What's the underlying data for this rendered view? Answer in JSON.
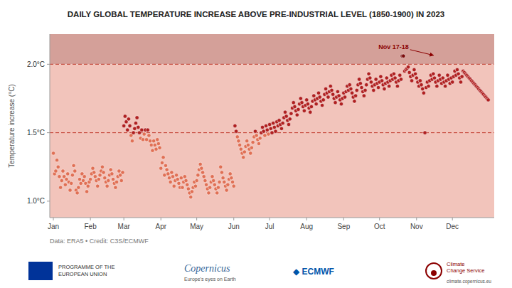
{
  "chart_data": {
    "type": "scatter",
    "title": "DAILY GLOBAL TEMPERATURE INCREASE ABOVE PRE-INDUSTRIAL LEVEL (1850-1900) IN 2023",
    "y_label": "Temperature increase (°C)",
    "credit": "Data: ERA5 • Credit: C3S/ECMWF",
    "footer": [
      "PROGRAMME OF THE\nEUROPEAN UNION",
      "Copernicus",
      "Europe's eyes on Earth",
      "◆ ECMWF",
      "Climate\nChange Service",
      "climate.copernicus.eu"
    ],
    "xlim": [
      -2,
      370
    ],
    "xticks": [
      {
        "value": 1,
        "label": "Jan"
      },
      {
        "value": 32,
        "label": "Feb"
      },
      {
        "value": 60,
        "label": "Mar"
      },
      {
        "value": 91,
        "label": "Apr"
      },
      {
        "value": 121,
        "label": "May"
      },
      {
        "value": 152,
        "label": "Jun"
      },
      {
        "value": 182,
        "label": "Jul"
      },
      {
        "value": 213,
        "label": "Aug"
      },
      {
        "value": 244,
        "label": "Sep"
      },
      {
        "value": 274,
        "label": "Oct"
      },
      {
        "value": 305,
        "label": "Nov"
      },
      {
        "value": 335,
        "label": "Dec"
      }
    ],
    "ylim": [
      0.88,
      2.22
    ],
    "yticks": [
      {
        "value": 1.0,
        "label": "1.0°C"
      },
      {
        "value": 1.5,
        "label": "1.5°C"
      },
      {
        "value": 2.0,
        "label": "2.0°C"
      }
    ],
    "grid": false,
    "reference_lines": [
      1.5,
      2.0
    ],
    "bands": [
      {
        "from": 2.0,
        "to": 2.22,
        "color": "#d4a099"
      },
      {
        "from": 0.88,
        "to": 2.0,
        "color": "#f2c4bb"
      }
    ],
    "annotations": [
      {
        "text": "Nov 17-18",
        "x": 321,
        "y": 2.06
      }
    ],
    "x": [
      1,
      2,
      3,
      4,
      5,
      6,
      7,
      8,
      9,
      10,
      11,
      12,
      13,
      14,
      15,
      16,
      17,
      18,
      19,
      20,
      21,
      22,
      23,
      24,
      25,
      26,
      27,
      28,
      29,
      30,
      31,
      32,
      33,
      34,
      35,
      36,
      37,
      38,
      39,
      40,
      41,
      42,
      43,
      44,
      45,
      46,
      47,
      48,
      49,
      50,
      51,
      52,
      53,
      54,
      55,
      56,
      57,
      58,
      59,
      60,
      61,
      62,
      63,
      64,
      65,
      66,
      67,
      68,
      69,
      70,
      71,
      72,
      73,
      74,
      75,
      76,
      77,
      78,
      79,
      80,
      81,
      82,
      83,
      84,
      85,
      86,
      87,
      88,
      89,
      90,
      91,
      92,
      93,
      94,
      95,
      96,
      97,
      98,
      99,
      100,
      101,
      102,
      103,
      104,
      105,
      106,
      107,
      108,
      109,
      110,
      111,
      112,
      113,
      114,
      115,
      116,
      117,
      118,
      119,
      120,
      121,
      122,
      123,
      124,
      125,
      126,
      127,
      128,
      129,
      130,
      131,
      132,
      133,
      134,
      135,
      136,
      137,
      138,
      139,
      140,
      141,
      142,
      143,
      144,
      145,
      146,
      147,
      148,
      149,
      150,
      151,
      152,
      153,
      154,
      155,
      156,
      157,
      158,
      159,
      160,
      161,
      162,
      163,
      164,
      165,
      166,
      167,
      168,
      169,
      170,
      171,
      172,
      173,
      174,
      175,
      176,
      177,
      178,
      179,
      180,
      181,
      182,
      183,
      184,
      185,
      186,
      187,
      188,
      189,
      190,
      191,
      192,
      193,
      194,
      195,
      196,
      197,
      198,
      199,
      200,
      201,
      202,
      203,
      204,
      205,
      206,
      207,
      208,
      209,
      210,
      211,
      212,
      213,
      214,
      215,
      216,
      217,
      218,
      219,
      220,
      221,
      222,
      223,
      224,
      225,
      226,
      227,
      228,
      229,
      230,
      231,
      232,
      233,
      234,
      235,
      236,
      237,
      238,
      239,
      240,
      241,
      242,
      243,
      244,
      245,
      246,
      247,
      248,
      249,
      250,
      251,
      252,
      253,
      254,
      255,
      256,
      257,
      258,
      259,
      260,
      261,
      262,
      263,
      264,
      265,
      266,
      267,
      268,
      269,
      270,
      271,
      272,
      273,
      274,
      275,
      276,
      277,
      278,
      279,
      280,
      281,
      282,
      283,
      284,
      285,
      286,
      287,
      288,
      289,
      290,
      291,
      292,
      293,
      294,
      295,
      296,
      297,
      298,
      299,
      300,
      301,
      302,
      303,
      304,
      305,
      306,
      307,
      308,
      309,
      310,
      311,
      312,
      313,
      314,
      315,
      316,
      317,
      318,
      319,
      320,
      321,
      322,
      323,
      324,
      325,
      326,
      327,
      328,
      329,
      330,
      331,
      332,
      333,
      334,
      335,
      336,
      337,
      338,
      339,
      340,
      341,
      342,
      343,
      344,
      345,
      346,
      347,
      348,
      349,
      350,
      351,
      352,
      353,
      354,
      355,
      356,
      357,
      358,
      359,
      360,
      361,
      362,
      363,
      364,
      365
    ],
    "values": [
      1.35,
      1.2,
      1.22,
      1.3,
      1.25,
      1.18,
      1.1,
      1.15,
      1.22,
      1.18,
      1.12,
      1.16,
      1.2,
      1.14,
      1.08,
      1.13,
      1.19,
      1.26,
      1.22,
      1.08,
      1.06,
      1.1,
      1.16,
      1.13,
      1.2,
      1.15,
      1.18,
      1.13,
      1.07,
      1.11,
      1.14,
      1.16,
      1.2,
      1.24,
      1.21,
      1.18,
      1.15,
      1.11,
      1.16,
      1.19,
      1.22,
      1.25,
      1.21,
      1.17,
      1.14,
      1.11,
      1.15,
      1.19,
      1.23,
      1.2,
      1.16,
      1.13,
      1.1,
      1.14,
      1.18,
      1.22,
      1.19,
      1.15,
      1.21,
      1.55,
      1.62,
      1.58,
      1.52,
      1.6,
      1.55,
      1.48,
      1.44,
      1.5,
      1.53,
      1.57,
      1.61,
      1.54,
      1.5,
      1.46,
      1.52,
      1.45,
      1.49,
      1.52,
      1.45,
      1.52,
      1.48,
      1.44,
      1.41,
      1.37,
      1.44,
      1.41,
      1.38,
      1.45,
      1.42,
      1.39,
      1.24,
      1.28,
      1.32,
      1.19,
      1.26,
      1.23,
      1.2,
      1.17,
      1.14,
      1.21,
      1.18,
      1.11,
      1.15,
      1.19,
      1.16,
      1.13,
      1.1,
      1.17,
      1.1,
      1.14,
      1.18,
      1.15,
      1.12,
      1.09,
      1.06,
      1.03,
      1.07,
      1.1,
      1.14,
      1.11,
      1.15,
      1.19,
      1.23,
      1.27,
      1.24,
      1.21,
      1.18,
      1.15,
      1.12,
      1.09,
      1.06,
      1.1,
      1.14,
      1.18,
      1.15,
      1.12,
      1.09,
      1.06,
      1.1,
      1.14,
      1.25,
      1.21,
      1.17,
      1.14,
      1.11,
      1.08,
      1.12,
      1.16,
      1.2,
      1.17,
      1.14,
      1.11,
      1.55,
      1.51,
      1.47,
      1.44,
      1.41,
      1.38,
      1.35,
      1.32,
      1.36,
      1.4,
      1.44,
      1.41,
      1.38,
      1.35,
      1.39,
      1.43,
      1.47,
      1.51,
      1.48,
      1.45,
      1.42,
      1.46,
      1.5,
      1.54,
      1.51,
      1.48,
      1.55,
      1.52,
      1.49,
      1.56,
      1.53,
      1.5,
      1.57,
      1.54,
      1.51,
      1.58,
      1.55,
      1.59,
      1.56,
      1.53,
      1.57,
      1.61,
      1.65,
      1.62,
      1.59,
      1.56,
      1.6,
      1.64,
      1.68,
      1.72,
      1.69,
      1.66,
      1.63,
      1.67,
      1.71,
      1.75,
      1.72,
      1.69,
      1.66,
      1.7,
      1.74,
      1.71,
      1.68,
      1.65,
      1.69,
      1.73,
      1.77,
      1.74,
      1.71,
      1.75,
      1.79,
      1.76,
      1.73,
      1.7,
      1.74,
      1.78,
      1.82,
      1.79,
      1.76,
      1.8,
      1.84,
      1.81,
      1.78,
      1.75,
      1.72,
      1.76,
      1.8,
      1.77,
      1.74,
      1.71,
      1.75,
      1.79,
      1.76,
      1.8,
      1.84,
      1.81,
      1.85,
      1.82,
      1.79,
      1.76,
      1.73,
      1.77,
      1.81,
      1.85,
      1.89,
      1.86,
      1.83,
      1.8,
      1.77,
      1.81,
      1.85,
      1.89,
      1.93,
      1.9,
      1.87,
      1.84,
      1.81,
      1.85,
      1.89,
      1.86,
      1.83,
      1.87,
      1.91,
      1.88,
      1.85,
      1.82,
      1.86,
      1.9,
      1.87,
      1.84,
      1.88,
      1.92,
      1.89,
      1.93,
      1.9,
      1.87,
      1.84,
      1.88,
      1.92,
      1.89,
      2.06,
      2.06,
      1.95,
      1.96,
      1.97,
      1.98,
      1.94,
      1.91,
      1.88,
      1.92,
      1.96,
      1.93,
      1.9,
      1.87,
      1.84,
      1.88,
      1.85,
      1.82,
      1.79,
      1.5,
      1.83,
      1.87,
      1.84,
      1.88,
      1.92,
      1.89,
      1.93,
      1.9,
      1.87,
      1.84,
      1.88,
      1.92,
      1.89,
      1.86,
      1.9,
      1.87,
      1.84,
      1.88,
      1.92,
      1.89,
      1.86,
      1.9,
      1.87,
      1.91,
      1.95,
      1.92,
      1.96,
      1.93,
      1.9,
      1.87,
      1.91,
      1.95,
      1.94,
      1.93,
      1.92,
      1.91,
      1.9,
      1.89,
      1.88,
      1.87,
      1.86,
      1.85,
      1.84,
      1.83,
      1.82,
      1.81,
      1.8,
      1.79,
      1.78,
      1.77,
      1.76,
      1.75,
      1.74
    ],
    "colors": [
      "#e07055",
      "#e07055",
      "#e07055",
      "#e07055",
      "#e07055",
      "#e07055",
      "#e07055",
      "#e07055",
      "#e07055",
      "#e07055",
      "#e07055",
      "#e07055",
      "#e07055",
      "#e07055",
      "#e07055",
      "#e07055",
      "#e07055",
      "#e07055",
      "#e07055",
      "#e07055",
      "#e07055",
      "#e07055",
      "#e07055",
      "#e07055",
      "#e07055",
      "#e07055",
      "#e07055",
      "#e07055",
      "#e07055",
      "#e07055",
      "#e07055",
      "#e07055",
      "#e07055",
      "#e07055",
      "#e07055",
      "#e07055",
      "#e07055",
      "#e07055",
      "#e07055",
      "#e07055",
      "#e07055",
      "#e07055",
      "#e07055",
      "#e07055",
      "#e07055",
      "#e07055",
      "#e07055",
      "#e07055",
      "#e07055",
      "#e07055",
      "#e07055",
      "#e07055",
      "#e07055",
      "#e07055",
      "#e07055",
      "#e07055",
      "#e07055",
      "#e07055",
      "#e07055",
      "#b02020",
      "#b02020",
      "#b02020",
      "#b02020",
      "#b02020",
      "#b02020",
      "#e07055",
      "#e07055",
      "#b02020",
      "#b02020",
      "#b02020",
      "#b02020",
      "#b02020",
      "#b02020",
      "#e07055",
      "#b02020",
      "#e07055",
      "#e07055",
      "#b02020",
      "#e07055",
      "#b02020",
      "#e07055",
      "#e07055",
      "#e07055",
      "#e07055",
      "#e07055",
      "#e07055",
      "#e07055",
      "#e07055",
      "#e07055",
      "#e07055",
      "#e07055",
      "#e07055",
      "#e07055",
      "#e07055",
      "#e07055",
      "#e07055",
      "#e07055",
      "#e07055",
      "#e07055",
      "#e07055",
      "#e07055",
      "#e07055",
      "#e07055",
      "#e07055",
      "#e07055",
      "#e07055",
      "#e07055",
      "#e07055",
      "#e07055",
      "#e07055",
      "#e07055",
      "#e07055",
      "#e07055",
      "#e07055",
      "#e07055",
      "#e07055",
      "#e07055",
      "#e07055",
      "#e07055",
      "#e07055",
      "#e07055",
      "#e07055",
      "#e07055",
      "#e07055",
      "#e07055",
      "#e07055",
      "#e07055",
      "#e07055",
      "#e07055",
      "#e07055",
      "#e07055",
      "#e07055",
      "#e07055",
      "#e07055",
      "#e07055",
      "#e07055",
      "#e07055",
      "#e07055",
      "#e07055",
      "#e07055",
      "#e07055",
      "#e07055",
      "#e07055",
      "#e07055",
      "#e07055",
      "#e07055",
      "#e07055",
      "#e07055",
      "#e07055",
      "#e07055",
      "#e07055",
      "#e07055",
      "#b02020",
      "#b02020",
      "#e07055",
      "#e07055",
      "#e07055",
      "#e07055",
      "#e07055",
      "#e07055",
      "#e07055",
      "#e07055",
      "#e07055",
      "#e07055",
      "#e07055",
      "#e07055",
      "#e07055",
      "#e07055",
      "#e07055",
      "#b02020",
      "#e07055",
      "#e07055",
      "#e07055",
      "#e07055",
      "#b02020",
      "#b02020",
      "#b02020",
      "#e07055",
      "#b02020",
      "#b02020",
      "#e07055",
      "#b02020",
      "#b02020",
      "#b02020",
      "#b02020",
      "#b02020",
      "#b02020",
      "#b02020",
      "#b02020",
      "#b02020",
      "#b02020",
      "#b02020",
      "#b02020",
      "#b02020",
      "#b02020",
      "#b02020",
      "#b02020",
      "#b02020",
      "#b02020",
      "#b02020",
      "#b02020",
      "#b02020",
      "#b02020",
      "#b02020",
      "#b02020",
      "#b02020",
      "#b02020",
      "#b02020",
      "#b02020",
      "#b02020",
      "#b02020",
      "#b02020",
      "#b02020",
      "#b02020",
      "#b02020",
      "#b02020",
      "#b02020",
      "#b02020",
      "#b02020",
      "#b02020",
      "#b02020",
      "#b02020",
      "#b02020",
      "#b02020",
      "#b02020",
      "#b02020",
      "#b02020",
      "#b02020",
      "#b02020",
      "#b02020",
      "#b02020",
      "#b02020",
      "#b02020",
      "#b02020",
      "#b02020",
      "#b02020",
      "#b02020",
      "#b02020",
      "#b02020",
      "#b02020",
      "#b02020",
      "#b02020",
      "#b02020",
      "#b02020",
      "#b02020",
      "#b02020",
      "#b02020",
      "#b02020",
      "#b02020",
      "#b02020",
      "#b02020",
      "#b02020",
      "#b02020",
      "#b02020",
      "#b02020",
      "#b02020",
      "#b02020",
      "#b02020",
      "#b02020",
      "#b02020",
      "#b02020",
      "#b02020",
      "#b02020",
      "#b02020",
      "#b02020",
      "#b02020",
      "#b02020",
      "#b02020",
      "#b02020",
      "#b02020",
      "#b02020",
      "#b02020",
      "#b02020",
      "#b02020",
      "#b02020",
      "#b02020",
      "#b02020",
      "#b02020",
      "#b02020",
      "#b02020",
      "#b02020",
      "#b02020",
      "#b02020",
      "#b02020",
      "#b02020",
      "#b02020",
      "#b02020",
      "#b02020",
      "#b02020",
      "#b02020",
      "#b02020",
      "#b02020",
      "#7a0a0a",
      "#7a0a0a",
      "#b02020",
      "#b02020",
      "#b02020",
      "#b02020",
      "#b02020",
      "#b02020",
      "#b02020",
      "#b02020",
      "#b02020",
      "#b02020",
      "#b02020",
      "#b02020",
      "#b02020",
      "#b02020",
      "#b02020",
      "#b02020",
      "#b02020",
      "#b02020",
      "#b02020",
      "#b02020",
      "#b02020",
      "#b02020",
      "#b02020",
      "#b02020",
      "#b02020",
      "#b02020",
      "#b02020",
      "#b02020",
      "#b02020",
      "#b02020",
      "#b02020",
      "#b02020",
      "#b02020",
      "#b02020",
      "#b02020",
      "#b02020",
      "#b02020",
      "#b02020",
      "#b02020",
      "#b02020",
      "#b02020",
      "#b02020",
      "#b02020",
      "#b02020",
      "#b02020",
      "#b02020",
      "#b02020",
      "#b02020",
      "#b02020",
      "#b02020",
      "#b02020",
      "#b02020",
      "#b02020",
      "#b02020",
      "#b02020",
      "#b02020",
      "#b02020",
      "#b02020",
      "#b02020",
      "#b02020",
      "#b02020",
      "#b02020",
      "#b02020",
      "#b02020",
      "#b02020",
      "#b02020",
      "#b02020",
      "#b02020",
      "#b02020",
      "#b02020",
      "#b02020"
    ]
  }
}
